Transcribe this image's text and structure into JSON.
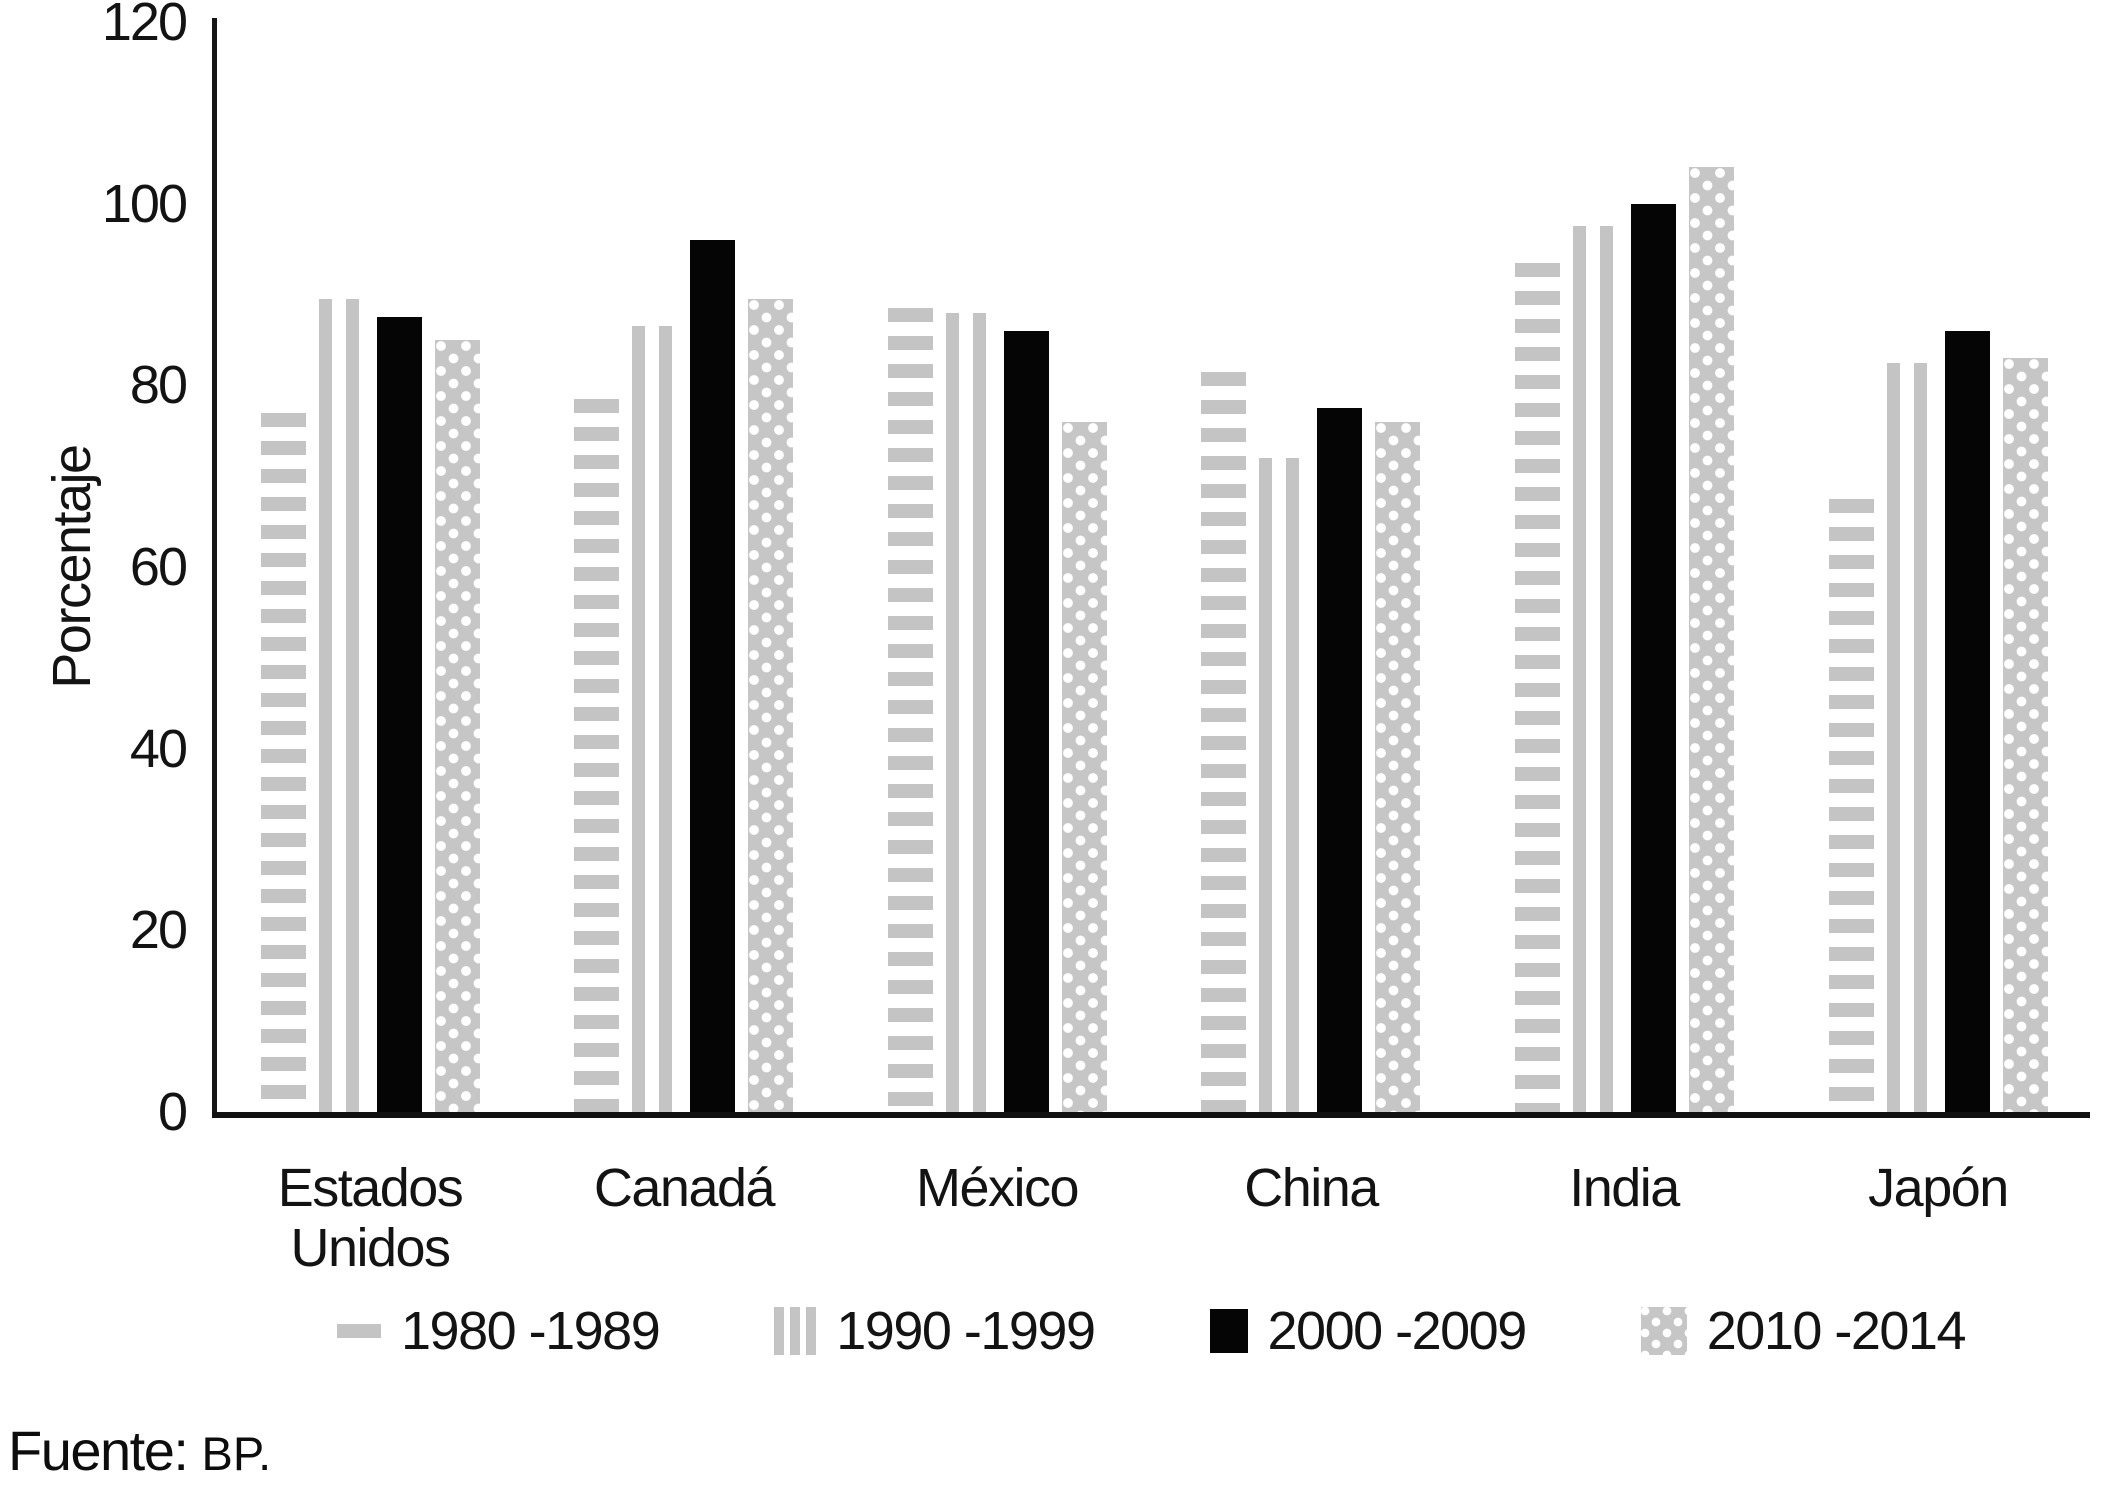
{
  "chart_data": {
    "type": "bar",
    "title": "",
    "ylabel": "Porcentaje",
    "xlabel": "",
    "ylim": [
      0,
      120
    ],
    "yticks": [
      0,
      20,
      40,
      60,
      80,
      100,
      120
    ],
    "grid": false,
    "legend_position": "bottom-center",
    "categories": [
      "Estados Unidos",
      "Canadá",
      "México",
      "China",
      "India",
      "Japón"
    ],
    "series": [
      {
        "name": "1980 -1989",
        "pattern": "horizontal-stripes",
        "color": "#c4c4c4",
        "values": [
          77,
          78.5,
          88.5,
          81.5,
          93.5,
          67.5
        ]
      },
      {
        "name": "1990 -1999",
        "pattern": "vertical-stripes",
        "color": "#c4c4c4",
        "values": [
          89.5,
          86.5,
          88,
          72,
          97.5,
          82.5
        ]
      },
      {
        "name": "2000 -2009",
        "pattern": "solid",
        "color": "#050505",
        "values": [
          87.5,
          96,
          86,
          77.5,
          100,
          86
        ]
      },
      {
        "name": "2010 -2014",
        "pattern": "dots",
        "color": "#c6c6c6",
        "values": [
          85,
          89.5,
          76,
          76,
          104,
          83
        ]
      }
    ],
    "source_label": "Fuente:",
    "source_value": "BP."
  },
  "colors": {
    "bar_gray": "#c4c4c4",
    "bar_black": "#050505",
    "axis": "#161616",
    "text": "#131313",
    "background": "#ffffff"
  }
}
